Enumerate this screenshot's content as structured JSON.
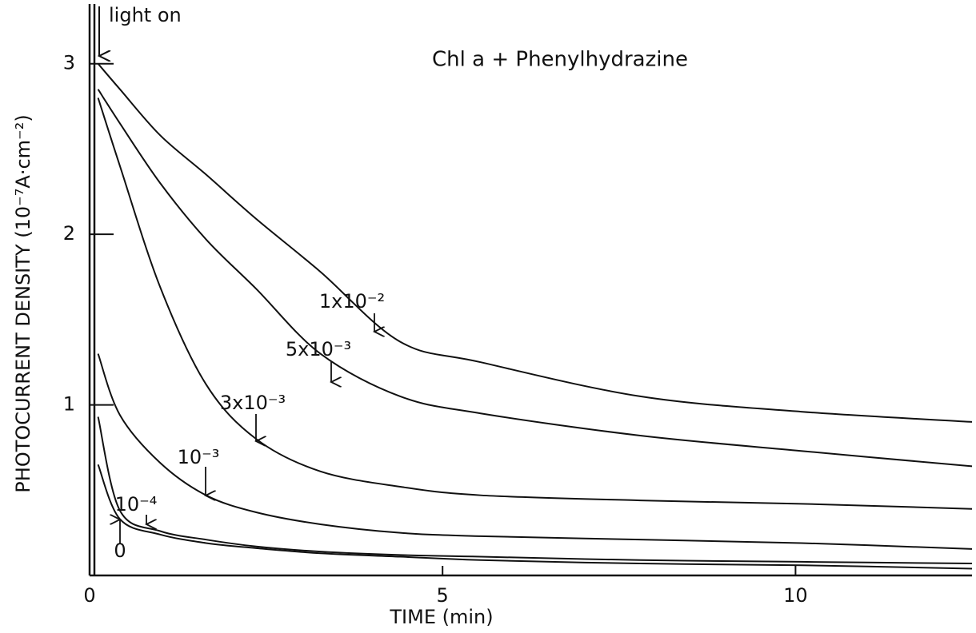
{
  "chart_data": {
    "type": "line",
    "title": "Chl a + Phenylhydrazine",
    "annotation": "light on",
    "x_label": "TIME (min)",
    "y_label": "PHOTOCURRENT DENSITY (10⁻⁷A·cm⁻²)",
    "x": [
      0.12,
      0.43,
      1.0,
      1.65,
      2.36,
      3.27,
      4.4,
      5.54,
      7.8,
      10.08,
      12.5
    ],
    "series": [
      {
        "name": "1x10⁻²",
        "color": "#111111",
        "values": [
          3.0,
          2.85,
          2.58,
          2.35,
          2.09,
          1.78,
          1.37,
          1.25,
          1.05,
          0.96,
          0.9
        ]
      },
      {
        "name": "5x10⁻³",
        "color": "#111111",
        "values": [
          2.85,
          2.65,
          2.3,
          1.97,
          1.68,
          1.3,
          1.05,
          0.95,
          0.82,
          0.73,
          0.64
        ]
      },
      {
        "name": "3x10⁻³",
        "color": "#111111",
        "values": [
          2.8,
          2.4,
          1.69,
          1.12,
          0.8,
          0.61,
          0.52,
          0.47,
          0.44,
          0.42,
          0.39
        ]
      },
      {
        "name": "10⁻³",
        "color": "#111111",
        "values": [
          1.3,
          0.94,
          0.66,
          0.47,
          0.37,
          0.3,
          0.25,
          0.23,
          0.21,
          0.19,
          0.155
        ]
      },
      {
        "name": "10⁻⁴",
        "color": "#111111",
        "values": [
          0.93,
          0.38,
          0.26,
          0.21,
          0.17,
          0.14,
          0.12,
          0.11,
          0.09,
          0.08,
          0.07
        ]
      },
      {
        "name": "0",
        "color": "#111111",
        "values": [
          0.65,
          0.33,
          0.24,
          0.19,
          0.16,
          0.13,
          0.11,
          0.09,
          0.07,
          0.06,
          0.04
        ]
      }
    ],
    "xlim": [
      0,
      12.5
    ],
    "ylim": [
      0,
      3.35
    ],
    "xticks": [
      0,
      5,
      10
    ],
    "yticks": [
      1,
      2,
      3
    ]
  }
}
